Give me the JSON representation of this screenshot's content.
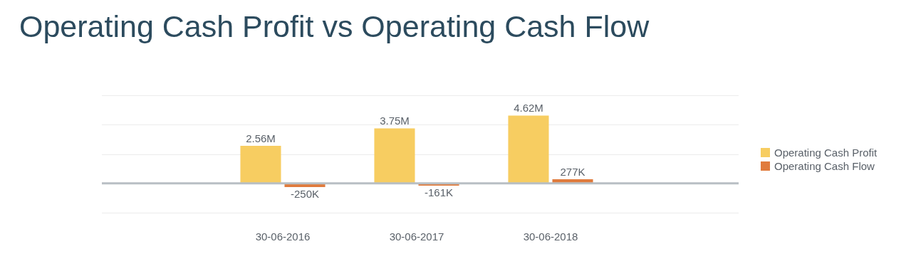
{
  "chart_data": {
    "type": "bar",
    "title": "Operating Cash Profit vs Operating Cash Flow",
    "categories": [
      "30-06-2016",
      "30-06-2017",
      "30-06-2018"
    ],
    "series": [
      {
        "name": "Operating Cash Profit",
        "color": "#f7cd61",
        "values": [
          2560000,
          3750000,
          4620000
        ],
        "value_labels": [
          "2.56M",
          "3.75M",
          "4.62M"
        ]
      },
      {
        "name": "Operating Cash Flow",
        "color": "#e07b3d",
        "values": [
          -250000,
          -161000,
          277000
        ],
        "value_labels": [
          "-250K",
          "-161K",
          "277K"
        ]
      }
    ],
    "ylim": [
      -2000000,
      6000000
    ],
    "yticks": [
      -2000000,
      0,
      2000000,
      4000000,
      6000000
    ],
    "grid": true,
    "legend": "right",
    "data_labels": true,
    "tick_labels": "x"
  }
}
